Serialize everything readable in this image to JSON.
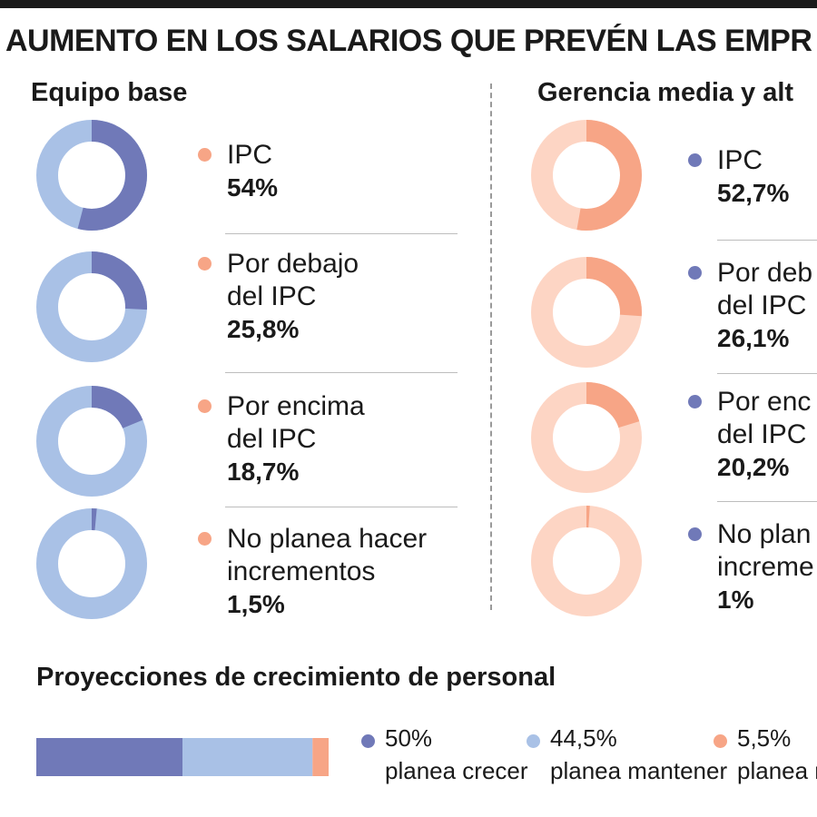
{
  "title": "AUMENTO EN LOS SALARIOS QUE PREVÉN LAS EMPR",
  "colors": {
    "blue_dark": "#7079b8",
    "blue_light": "#a9c1e6",
    "salmon_dark": "#f7a586",
    "salmon_light": "#fdd5c4",
    "rule": "#bdbdbd"
  },
  "chart_data": [
    {
      "type": "pie",
      "title": "Equipo base",
      "style": "donut",
      "slices": [
        {
          "label": "IPC",
          "value": 54,
          "value_label": "54%"
        },
        {
          "label": "Por debajo\ndel IPC",
          "value": 25.8,
          "value_label": "25,8%"
        },
        {
          "label": "Por encima\ndel IPC",
          "value": 18.7,
          "value_label": "18,7%"
        },
        {
          "label": "No planea hacer\nincrementos",
          "value": 1.5,
          "value_label": "1,5%"
        }
      ]
    },
    {
      "type": "pie",
      "title": "Gerencia media y alt",
      "style": "donut",
      "slices": [
        {
          "label": "IPC",
          "value": 52.7,
          "value_label": "52,7%"
        },
        {
          "label": "Por deb\ndel IPC",
          "value": 26.1,
          "value_label": "26,1%"
        },
        {
          "label": "Por enc\ndel IPC",
          "value": 20.2,
          "value_label": "20,2%"
        },
        {
          "label": "No plan\nincreme",
          "value": 1,
          "value_label": "1%"
        }
      ]
    },
    {
      "type": "bar",
      "style": "stacked-horizontal",
      "title": "Proyecciones de crecimiento de personal",
      "segments": [
        {
          "value": 50,
          "value_label": "50%",
          "label": "planea crecer"
        },
        {
          "value": 44.5,
          "value_label": "44,5%",
          "label": "planea mantener"
        },
        {
          "value": 5.5,
          "value_label": "5,5%",
          "label": "planea re"
        }
      ]
    }
  ]
}
